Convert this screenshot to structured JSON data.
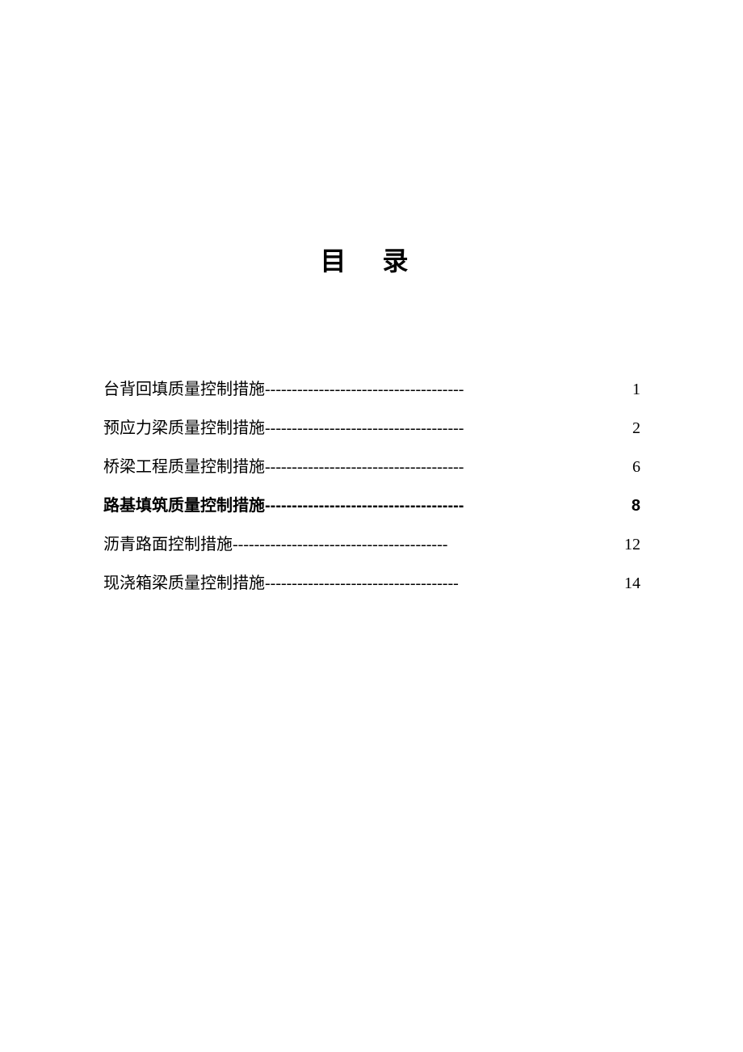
{
  "title": "目 录",
  "toc": {
    "entries": [
      {
        "label": "台背回填质量控制措施",
        "dashes": "-------------------------------------",
        "page": "1",
        "bold": false
      },
      {
        "label": "预应力梁质量控制措施",
        "dashes": "-------------------------------------",
        "page": "2",
        "bold": false
      },
      {
        "label": "桥梁工程质量控制措施",
        "dashes": "-------------------------------------",
        "page": "6",
        "bold": false
      },
      {
        "label": "路基填筑质量控制措施",
        "dashes": "-------------------------------------",
        "page": "8",
        "bold": true
      },
      {
        "label": "沥青路面控制措施",
        "dashes": "----------------------------------------",
        "page": "12",
        "bold": false
      },
      {
        "label": "现浇箱梁质量控制措施",
        "dashes": "------------------------------------",
        "page": "14",
        "bold": false
      }
    ]
  }
}
